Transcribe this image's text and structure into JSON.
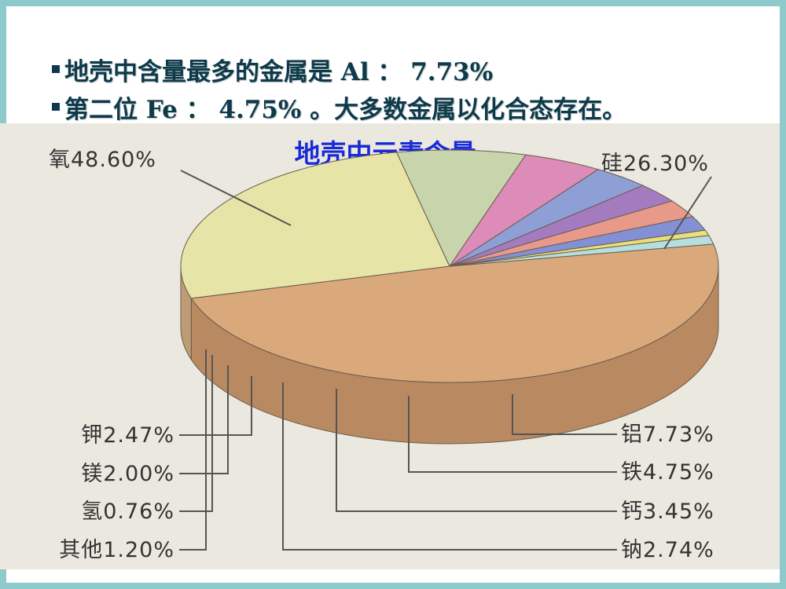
{
  "bullets": [
    "地壳中含量最多的金属是 Al ： 7.73%",
    "第二位 Fe ： 4.75% 。大多数金属以化合态存在。"
  ],
  "colors": {
    "accent_border": "#8ec9cc",
    "bullet_text": "#0d3b4b",
    "chart_title": "#1a2ad8",
    "chart_bg": "#ebe8df"
  },
  "chart_data": {
    "type": "pie",
    "title": "地壳中元素含量",
    "slices": [
      {
        "label": "氧",
        "value": 48.6,
        "display": "氧48.60%",
        "color": "#d9a97c",
        "side": "#b98a61"
      },
      {
        "label": "硅",
        "value": 26.3,
        "display": "硅26.30%",
        "color": "#e6e5a7",
        "side": "#bd9c76"
      },
      {
        "label": "铝",
        "value": 7.73,
        "display": "铝7.73%",
        "color": "#c8d4ac",
        "side": "#a7a184"
      },
      {
        "label": "铁",
        "value": 4.75,
        "display": "铁4.75%",
        "color": "#dd8bb8",
        "side": "#c27a8a"
      },
      {
        "label": "钙",
        "value": 3.45,
        "display": "钙3.45%",
        "color": "#8e9fd6",
        "side": "#8b8fa3"
      },
      {
        "label": "钠",
        "value": 2.74,
        "display": "钠2.74%",
        "color": "#a57bc0",
        "side": "#8e6c98"
      },
      {
        "label": "钾",
        "value": 2.47,
        "display": "钾2.47%",
        "color": "#e79a8a",
        "side": "#c07f78"
      },
      {
        "label": "镁",
        "value": 2.0,
        "display": "镁2.00%",
        "color": "#8390d6",
        "side": "#857aa0"
      },
      {
        "label": "氢",
        "value": 0.76,
        "display": "氢0.76%",
        "color": "#e8e07a",
        "side": "#c0b470"
      },
      {
        "label": "其他",
        "value": 1.2,
        "display": "其他1.20%",
        "color": "#b7dede",
        "side": "#9ab4b4"
      }
    ]
  }
}
